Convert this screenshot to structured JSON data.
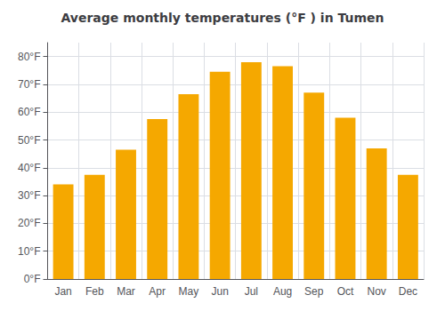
{
  "chart_data": {
    "type": "bar",
    "title": "Average monthly temperatures (°F ) in Tumen",
    "categories": [
      "Jan",
      "Feb",
      "Mar",
      "Apr",
      "May",
      "Jun",
      "Jul",
      "Aug",
      "Sep",
      "Oct",
      "Nov",
      "Dec"
    ],
    "values": [
      34,
      37.5,
      46.5,
      57.5,
      66.5,
      74.5,
      78,
      76.5,
      67,
      58,
      47,
      37.5
    ],
    "color": "#F5A800",
    "ylim": [
      0,
      85
    ],
    "yticks": [
      {
        "value": 0,
        "label": "0°F"
      },
      {
        "value": 10,
        "label": "10°F"
      },
      {
        "value": 20,
        "label": "20°F"
      },
      {
        "value": 30,
        "label": "30°F"
      },
      {
        "value": 40,
        "label": "40°F"
      },
      {
        "value": 50,
        "label": "50°F"
      },
      {
        "value": 60,
        "label": "60°F"
      },
      {
        "value": 70,
        "label": "70°F"
      },
      {
        "value": 80,
        "label": "80°F"
      }
    ],
    "grid": true
  }
}
